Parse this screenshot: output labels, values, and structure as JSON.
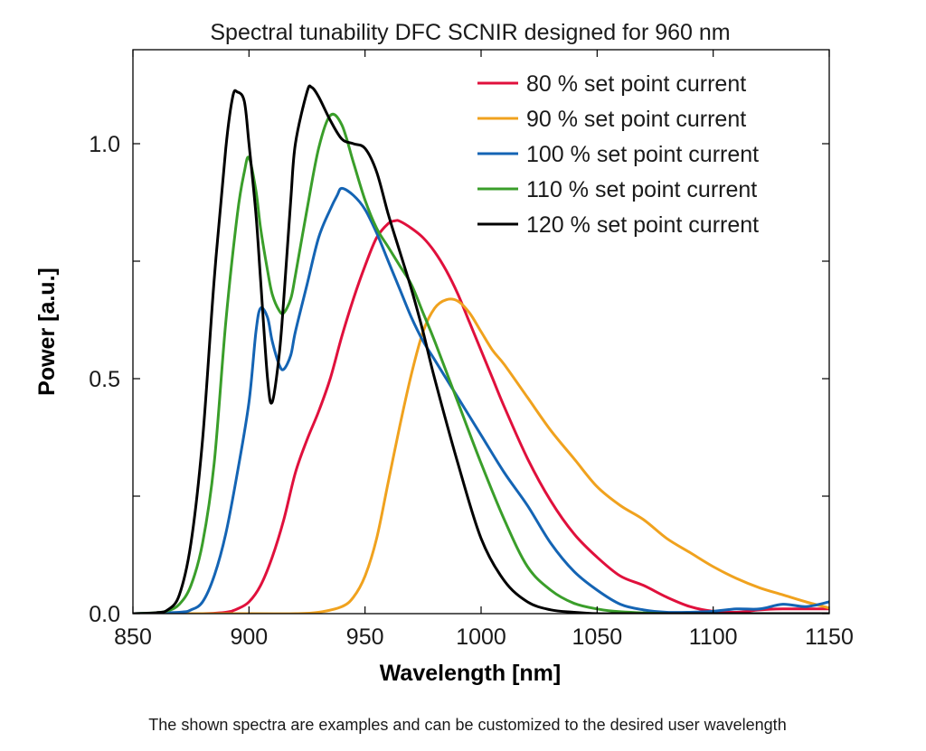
{
  "chart_data": {
    "type": "line",
    "title": "Spectral tunability DFC SCNIR designed for 960 nm",
    "xlabel": "Wavelength [nm]",
    "ylabel": "Power [a.u.]",
    "xlim": [
      850,
      1150
    ],
    "ylim": [
      0,
      1.2
    ],
    "xticks": [
      850,
      900,
      950,
      1000,
      1050,
      1100,
      1150
    ],
    "xtick_labels": [
      "850",
      "900",
      "950",
      "1000",
      "1050",
      "1100",
      "1150"
    ],
    "yticks": [
      0,
      0.5,
      1.0
    ],
    "ytick_labels": [
      "0.0",
      "0.5",
      "1.0"
    ],
    "y_minor_ticks": [
      0.25,
      0.75
    ],
    "grid": false,
    "legend_position": "top-right",
    "footnote": "The shown spectra are examples and can be customized to the desired user wavelength",
    "series": [
      {
        "name": "80 % set point current",
        "color": "#e0103c",
        "x": [
          850,
          870,
          880,
          890,
          895,
          900,
          905,
          910,
          915,
          920,
          925,
          930,
          935,
          940,
          945,
          950,
          955,
          960,
          963,
          965,
          970,
          975,
          980,
          985,
          990,
          995,
          1000,
          1005,
          1010,
          1020,
          1030,
          1040,
          1050,
          1060,
          1070,
          1080,
          1090,
          1100,
          1110,
          1120,
          1130,
          1140,
          1150
        ],
        "y": [
          0.0,
          0.0,
          0.0,
          0.003,
          0.01,
          0.025,
          0.06,
          0.12,
          0.2,
          0.3,
          0.37,
          0.43,
          0.5,
          0.59,
          0.67,
          0.74,
          0.8,
          0.83,
          0.836,
          0.835,
          0.82,
          0.8,
          0.77,
          0.73,
          0.68,
          0.62,
          0.56,
          0.5,
          0.44,
          0.33,
          0.24,
          0.17,
          0.12,
          0.08,
          0.06,
          0.035,
          0.015,
          0.005,
          0.003,
          0.008,
          0.01,
          0.01,
          0.01
        ]
      },
      {
        "name": "90 % set point current",
        "color": "#f0a21e",
        "x": [
          850,
          900,
          920,
          930,
          940,
          945,
          950,
          955,
          960,
          965,
          970,
          975,
          980,
          985,
          990,
          995,
          1000,
          1005,
          1010,
          1020,
          1030,
          1040,
          1050,
          1060,
          1070,
          1080,
          1090,
          1100,
          1110,
          1120,
          1130,
          1140,
          1150
        ],
        "y": [
          0.0,
          0.0,
          0.0,
          0.003,
          0.015,
          0.035,
          0.08,
          0.16,
          0.28,
          0.4,
          0.51,
          0.6,
          0.65,
          0.668,
          0.665,
          0.64,
          0.6,
          0.56,
          0.53,
          0.46,
          0.39,
          0.33,
          0.27,
          0.23,
          0.2,
          0.16,
          0.13,
          0.1,
          0.075,
          0.055,
          0.04,
          0.025,
          0.012
        ]
      },
      {
        "name": "100 % set point current",
        "color": "#1464b4",
        "x": [
          850,
          870,
          875,
          880,
          885,
          890,
          895,
          900,
          903,
          905,
          908,
          910,
          913,
          915,
          918,
          920,
          925,
          930,
          935,
          938,
          940,
          945,
          950,
          955,
          960,
          965,
          970,
          975,
          980,
          990,
          1000,
          1010,
          1020,
          1030,
          1040,
          1050,
          1060,
          1070,
          1080,
          1090,
          1100,
          1110,
          1120,
          1130,
          1140,
          1150
        ],
        "y": [
          0.0,
          0.003,
          0.008,
          0.025,
          0.08,
          0.17,
          0.3,
          0.45,
          0.6,
          0.65,
          0.63,
          0.58,
          0.53,
          0.52,
          0.55,
          0.6,
          0.7,
          0.8,
          0.86,
          0.89,
          0.905,
          0.89,
          0.86,
          0.81,
          0.75,
          0.69,
          0.63,
          0.58,
          0.54,
          0.46,
          0.38,
          0.3,
          0.23,
          0.15,
          0.09,
          0.05,
          0.02,
          0.008,
          0.003,
          0.003,
          0.005,
          0.01,
          0.01,
          0.02,
          0.015,
          0.025
        ]
      },
      {
        "name": "110 % set point current",
        "color": "#3a9e2a",
        "x": [
          850,
          860,
          865,
          870,
          875,
          880,
          885,
          890,
          895,
          898,
          900,
          903,
          905,
          908,
          910,
          913,
          915,
          918,
          920,
          925,
          930,
          935,
          940,
          945,
          950,
          955,
          960,
          965,
          970,
          975,
          980,
          990,
          1000,
          1010,
          1020,
          1030,
          1040,
          1050,
          1060,
          1080,
          1100,
          1120,
          1140,
          1150
        ],
        "y": [
          0.0,
          0.002,
          0.006,
          0.02,
          0.06,
          0.15,
          0.32,
          0.62,
          0.85,
          0.94,
          0.97,
          0.9,
          0.82,
          0.73,
          0.68,
          0.645,
          0.64,
          0.67,
          0.72,
          0.86,
          0.99,
          1.06,
          1.04,
          0.96,
          0.88,
          0.82,
          0.78,
          0.74,
          0.7,
          0.64,
          0.58,
          0.45,
          0.32,
          0.2,
          0.1,
          0.05,
          0.022,
          0.01,
          0.004,
          0.0,
          0.0,
          0.0,
          0.0,
          0.0
        ]
      },
      {
        "name": "120 % set point current",
        "color": "#000000",
        "x": [
          850,
          860,
          865,
          870,
          875,
          880,
          885,
          890,
          893,
          895,
          898,
          900,
          903,
          905,
          908,
          910,
          913,
          915,
          918,
          920,
          925,
          927,
          930,
          935,
          940,
          945,
          950,
          955,
          960,
          965,
          970,
          975,
          980,
          990,
          1000,
          1010,
          1020,
          1030,
          1040,
          1050,
          1060,
          1070,
          1080,
          1100,
          1120,
          1140,
          1150
        ],
        "y": [
          0.0,
          0.002,
          0.008,
          0.04,
          0.15,
          0.37,
          0.71,
          0.99,
          1.1,
          1.11,
          1.09,
          1.0,
          0.85,
          0.71,
          0.5,
          0.45,
          0.55,
          0.67,
          0.88,
          1.0,
          1.11,
          1.12,
          1.1,
          1.05,
          1.01,
          1.0,
          0.99,
          0.94,
          0.85,
          0.77,
          0.69,
          0.6,
          0.5,
          0.32,
          0.16,
          0.07,
          0.025,
          0.008,
          0.003,
          0.0,
          0.0,
          0.0,
          0.0,
          0.0,
          0.0,
          0.0,
          0.0
        ]
      }
    ]
  }
}
